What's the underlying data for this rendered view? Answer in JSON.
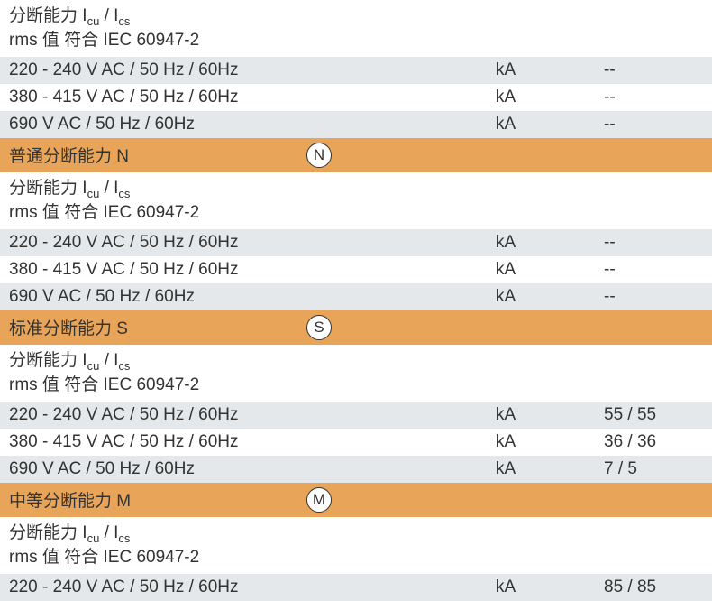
{
  "colors": {
    "row_gray": "#e5e8ea",
    "row_orange": "#e8a55a",
    "row_white": "#ffffff",
    "text": "#333333",
    "circle_border": "#333333",
    "circle_bg": "#ffffff"
  },
  "typography": {
    "body_fontsize": 19,
    "sub_fontsize": 13,
    "circle_fontsize": 17
  },
  "header_partial": {
    "line1_part1": "分断能力 I",
    "line1_sub1": "cu",
    "line1_slash": " / I",
    "line1_sub2": "cs",
    "line2": "rms 值 符合 IEC 60947-2"
  },
  "common_rows": {
    "r1_label": "220 - 240 V AC / 50 Hz / 60Hz",
    "r2_label": "380 - 415 V AC / 50 Hz / 60Hz",
    "r3_label": "690 V AC / 50 Hz / 60Hz",
    "unit": "kA",
    "dash": "--"
  },
  "sections": {
    "N": {
      "title": "普通分断能力 N",
      "icon": "N",
      "header_line1_part1": "分断能力 I",
      "header_line1_sub1": "cu",
      "header_line1_slash": " / I",
      "header_line1_sub2": "cs",
      "header_line2": "rms 值 符合 IEC 60947-2",
      "v1": "--",
      "v2": "--",
      "v3": "--"
    },
    "S": {
      "title": "标准分断能力 S",
      "icon": "S",
      "header_line1_part1": "分断能力 I",
      "header_line1_sub1": "cu",
      "header_line1_slash": " / I",
      "header_line1_sub2": "cs",
      "header_line2": "rms 值 符合 IEC 60947-2",
      "v1": "55 / 55",
      "v2": "36 / 36",
      "v3": "7 / 5"
    },
    "M": {
      "title": "中等分断能力 M",
      "icon": "M",
      "header_line1_part1": "分断能力 I",
      "header_line1_sub1": "cu",
      "header_line1_slash": " / I",
      "header_line1_sub2": "cs",
      "header_line2": "rms 值 符合 IEC 60947-2",
      "v1": "85 / 85"
    }
  }
}
